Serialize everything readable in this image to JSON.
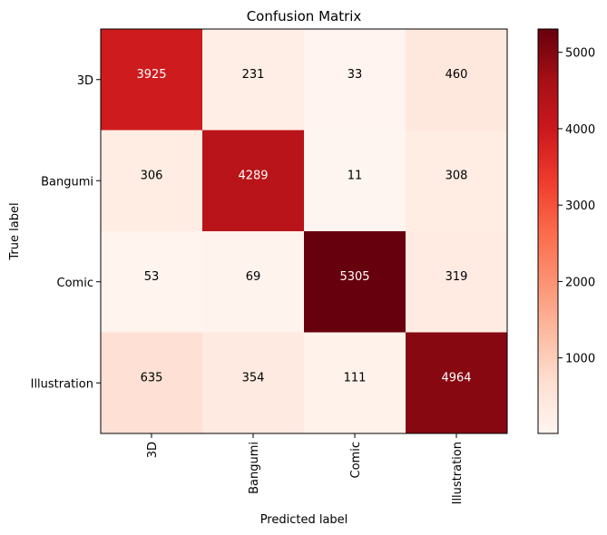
{
  "chart_data": {
    "type": "heatmap",
    "title": "Confusion Matrix",
    "xlabel": "Predicted label",
    "ylabel": "True label",
    "x_categories": [
      "3D",
      "Bangumi",
      "Comic",
      "Illustration"
    ],
    "y_categories": [
      "3D",
      "Bangumi",
      "Comic",
      "Illustration"
    ],
    "values": [
      [
        3925,
        231,
        33,
        460
      ],
      [
        306,
        4289,
        11,
        308
      ],
      [
        53,
        69,
        5305,
        319
      ],
      [
        635,
        354,
        111,
        4964
      ]
    ],
    "colormap": "Reds",
    "colorbar": {
      "min": 11,
      "max": 5305,
      "ticks": [
        1000,
        2000,
        3000,
        4000,
        5000
      ]
    },
    "text_threshold": 2658
  }
}
